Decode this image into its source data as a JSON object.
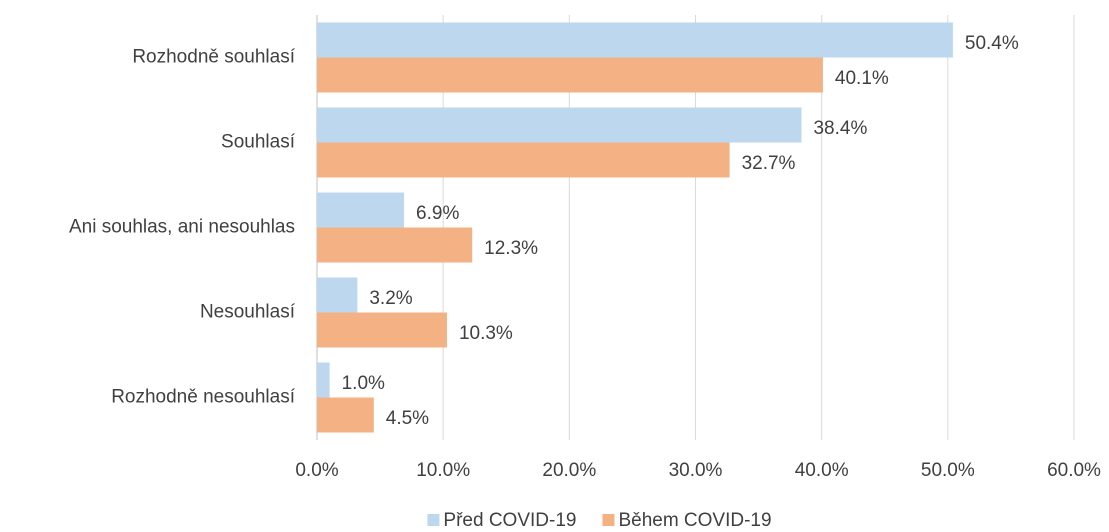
{
  "chart_data": {
    "type": "barh",
    "categories": [
      "Rozhodně souhlasí",
      "Souhlasí",
      "Ani souhlas, ani nesouhlas",
      "Nesouhlasí",
      "Rozhodně nesouhlasí"
    ],
    "series": [
      {
        "name": "Před COVID-19",
        "color": "#bdd7ee",
        "values": [
          50.4,
          38.4,
          6.9,
          3.2,
          1.0
        ],
        "value_labels": [
          "50.4%",
          "38.4%",
          "6.9%",
          "3.2%",
          "1.0%"
        ]
      },
      {
        "name": "Během COVID-19",
        "color": "#f4b183",
        "values": [
          40.1,
          32.7,
          12.3,
          10.3,
          4.5
        ],
        "value_labels": [
          "40.1%",
          "32.7%",
          "12.3%",
          "10.3%",
          "4.5%"
        ]
      }
    ],
    "xlim": [
      0,
      60
    ],
    "xticks": [
      {
        "value": 0,
        "label": "0.0%"
      },
      {
        "value": 10,
        "label": "10.0%"
      },
      {
        "value": 20,
        "label": "20.0%"
      },
      {
        "value": 30,
        "label": "30.0%"
      },
      {
        "value": 40,
        "label": "40.0%"
      },
      {
        "value": 50,
        "label": "50.0%"
      },
      {
        "value": 60,
        "label": "60.0%"
      }
    ],
    "grid": true,
    "legend": "bottom"
  }
}
